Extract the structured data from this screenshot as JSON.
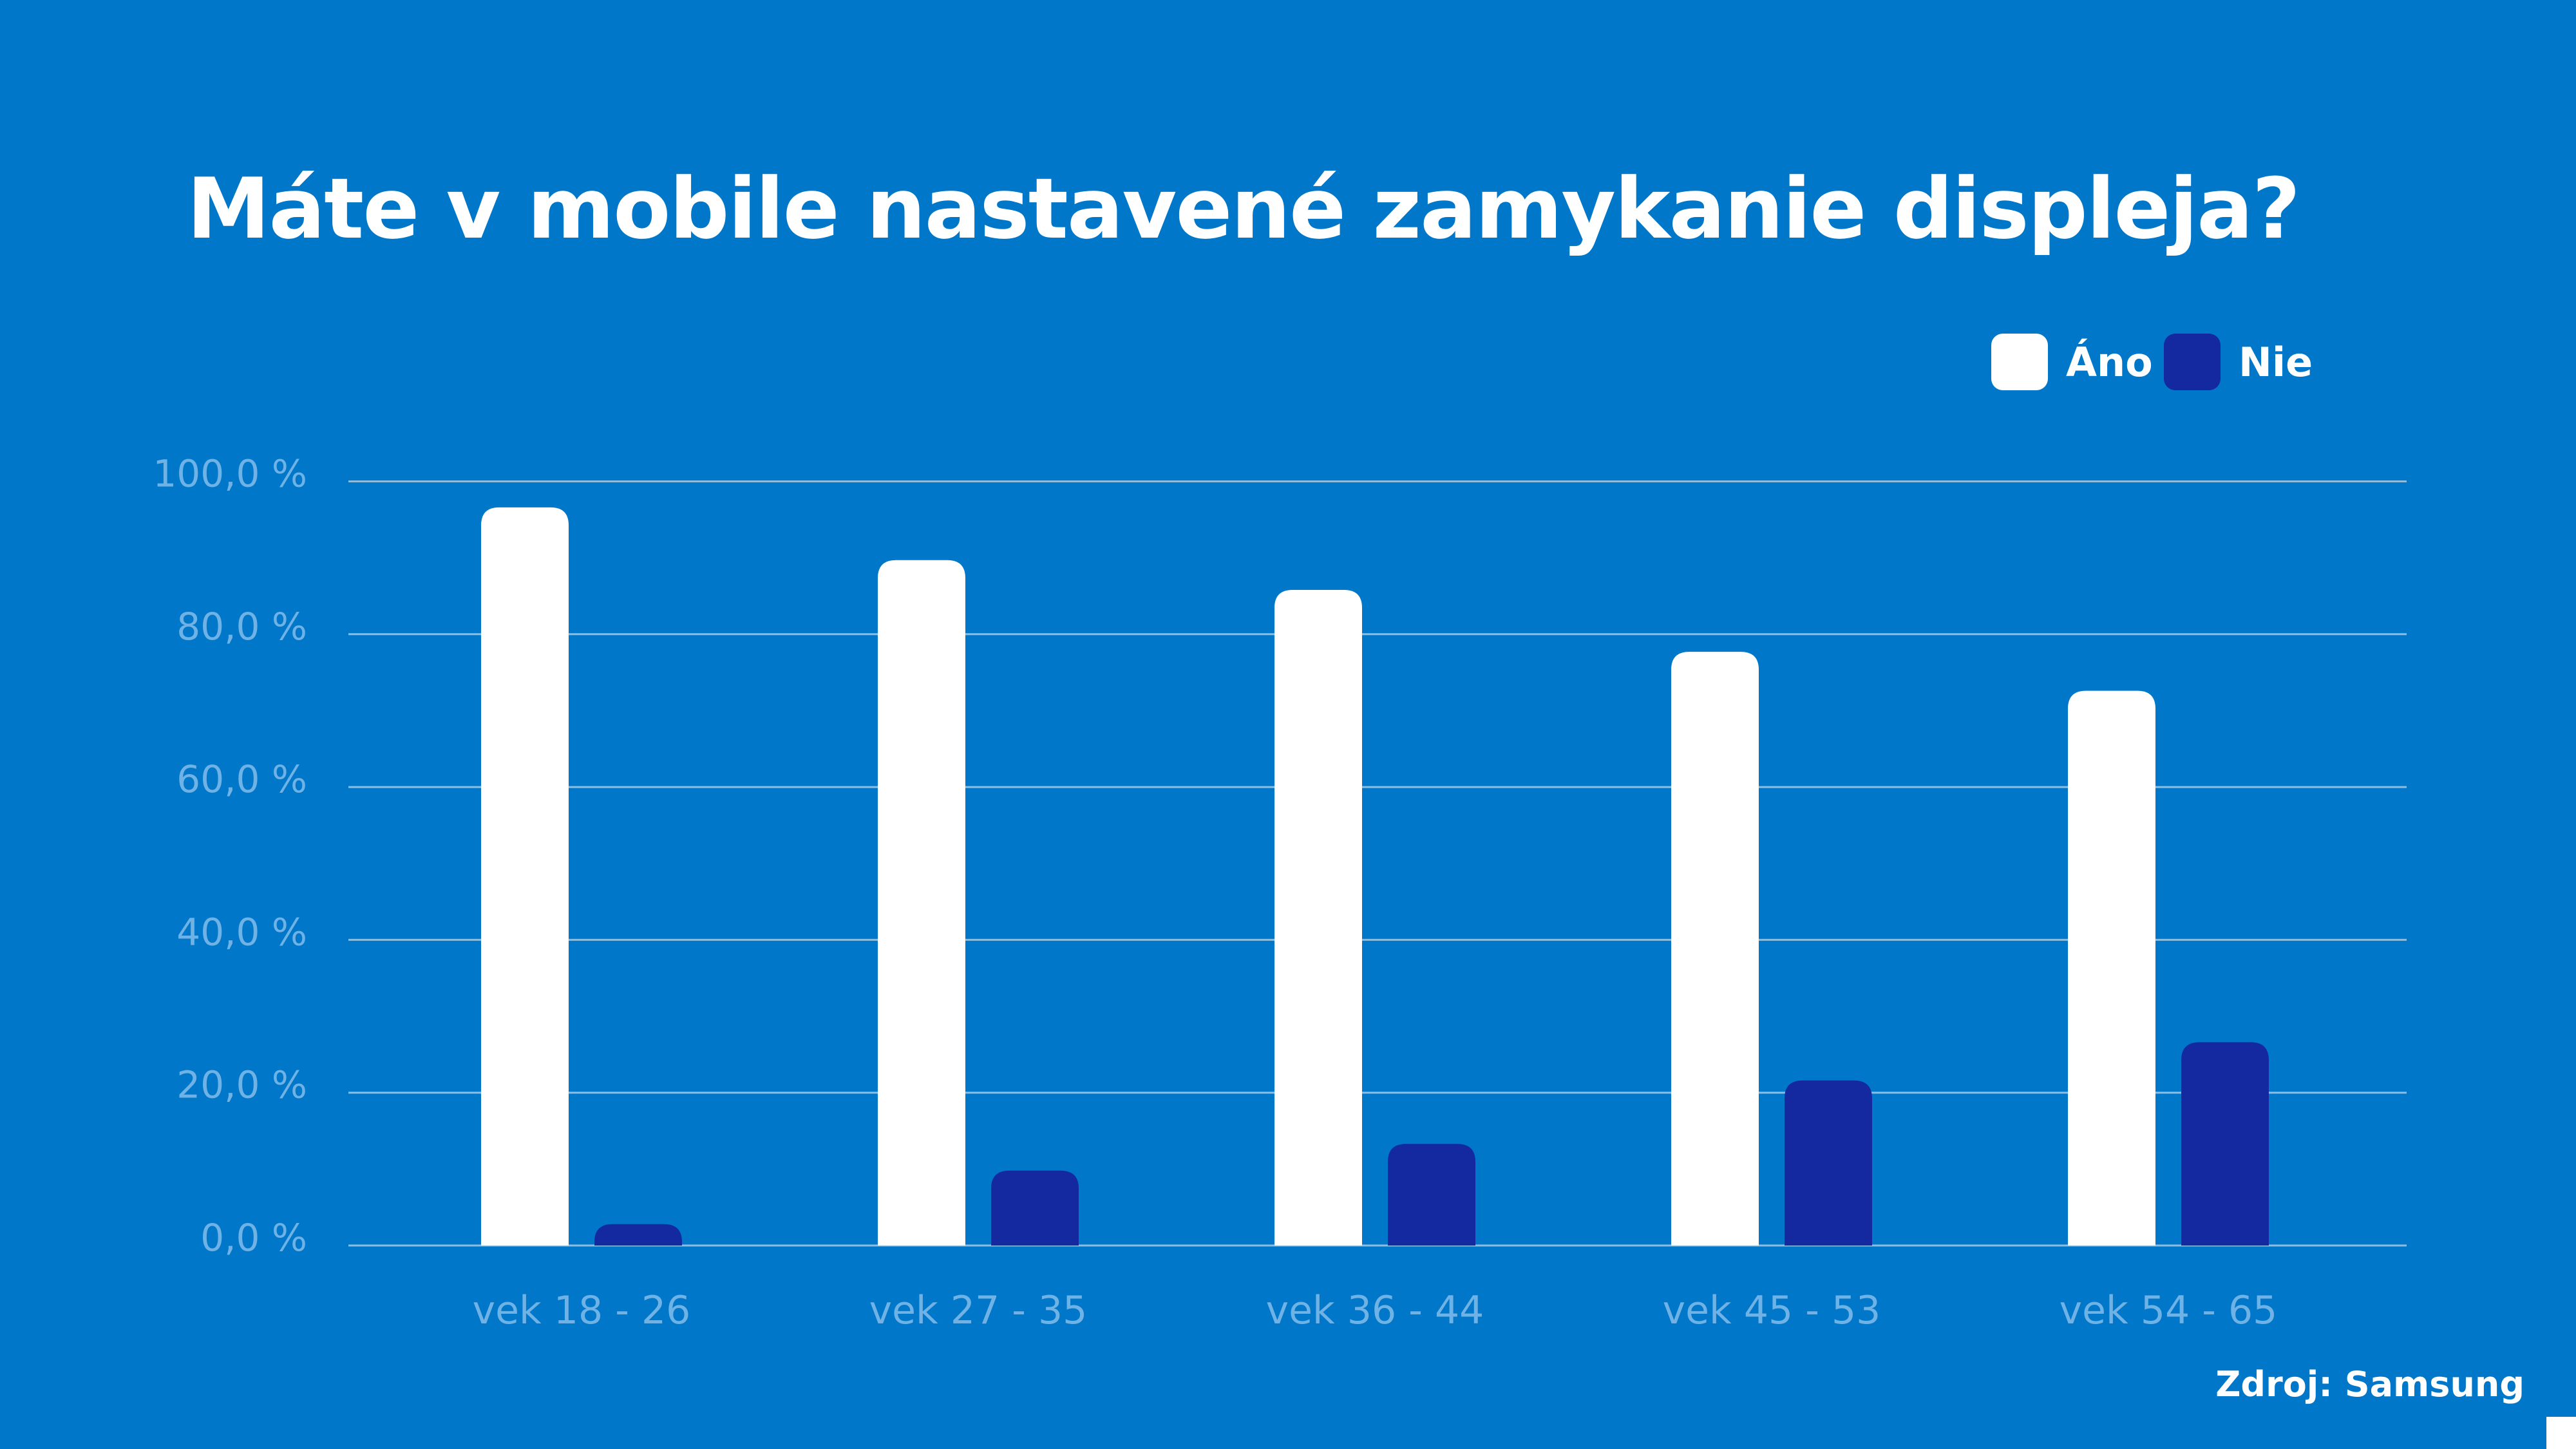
{
  "colors": {
    "background": "#0077c8",
    "ano": "#ffffff",
    "nie": "#1428a0",
    "grid": "#8fbde0",
    "axis_text": "#6fb2e6"
  },
  "source": "Zdroj: Samsung",
  "chart_data": {
    "type": "bar",
    "title": "Máte v mobile nastavené zamykanie displeja?",
    "categories": [
      "vek 18 - 26",
      "vek 27 - 35",
      "vek 36 - 44",
      "vek 45 - 53",
      "vek 54 - 65"
    ],
    "series": [
      {
        "name": "Áno",
        "values": [
          96.6,
          89.7,
          85.8,
          77.7,
          72.6
        ]
      },
      {
        "name": "Nie",
        "values": [
          2.8,
          9.8,
          13.3,
          21.6,
          26.6
        ]
      }
    ],
    "yticks": [
      "0,0 %",
      "20,0 %",
      "40,0 %",
      "60,0 %",
      "80,0 %",
      "100,0 %"
    ],
    "ylim": [
      0,
      100
    ],
    "grid": true,
    "legend": "top-right",
    "xlabel": "",
    "ylabel": ""
  }
}
